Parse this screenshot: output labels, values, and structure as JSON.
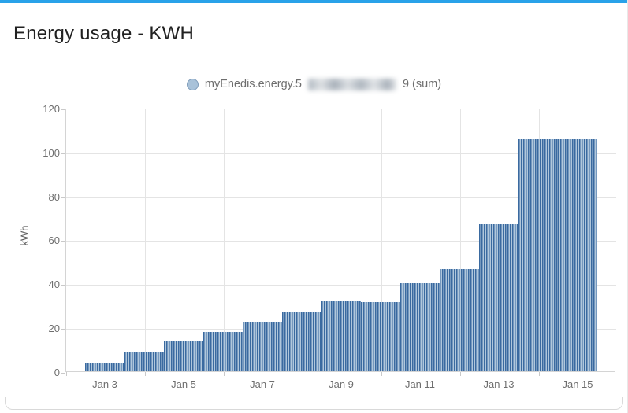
{
  "accent_color": "#29A2E9",
  "header": {
    "title": "Energy usage - KWH"
  },
  "legend": {
    "prefix": "myEnedis.energy.5",
    "suffix": "9 (sum)",
    "redacted_middle": true,
    "marker_fill": "#A9C2D9",
    "marker_border": "#7F9CB9"
  },
  "chart_data": {
    "type": "bar",
    "title": "Energy usage - KWH",
    "series_name": "myEnedis.energy.5•••••••••9 (sum)",
    "xlabel": "",
    "ylabel": "kWh",
    "ylim": [
      0,
      120
    ],
    "yticks": [
      0,
      20,
      40,
      60,
      80,
      100,
      120
    ],
    "xtick_labels": [
      "Jan 3",
      "Jan 5",
      "Jan 7",
      "Jan 9",
      "Jan 11",
      "Jan 13",
      "Jan 15"
    ],
    "categories": [
      "Jan 3",
      "Jan 4",
      "Jan 5",
      "Jan 6",
      "Jan 7",
      "Jan 8",
      "Jan 9",
      "Jan 10",
      "Jan 11",
      "Jan 12",
      "Jan 13",
      "Jan 14",
      "Jan 15"
    ],
    "values": [
      4,
      9,
      14,
      18,
      22.5,
      27,
      32,
      31.5,
      40,
      46.5,
      67,
      105.5,
      105.5
    ],
    "grid": true,
    "legend_position": "top",
    "bar_style": "striped",
    "bar_stripe_dark": "#3A6AA0",
    "bar_stripe_light": "#B0C7DC"
  }
}
